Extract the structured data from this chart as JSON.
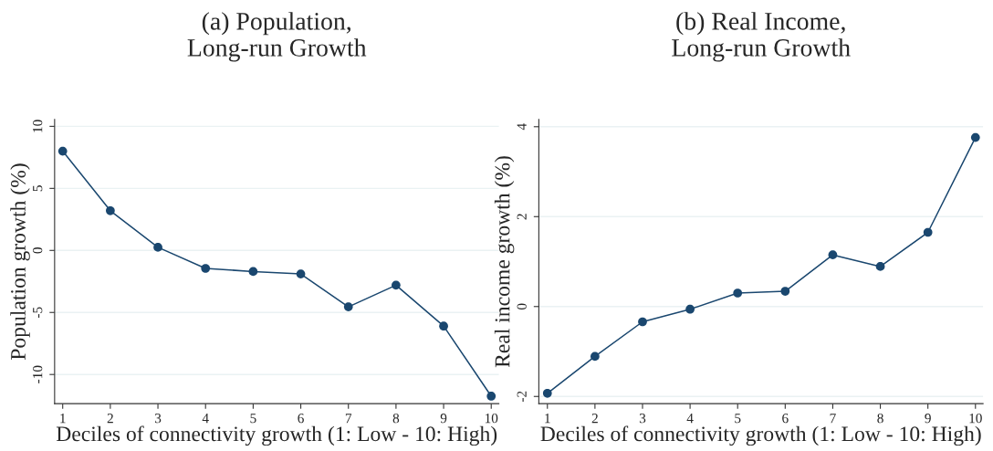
{
  "chart_data": [
    {
      "type": "line",
      "title": "(a) Population,\nLong-run Growth",
      "xlabel": "Deciles of connectivity growth (1: Low - 10: High)",
      "ylabel": "Population growth (%)",
      "x": [
        1,
        2,
        3,
        4,
        5,
        6,
        7,
        8,
        9,
        10
      ],
      "series": [
        {
          "color": "#1a476f",
          "values": [
            8.0,
            3.2,
            0.25,
            -1.45,
            -1.7,
            -1.9,
            -4.55,
            -2.8,
            -6.1,
            -11.75
          ]
        }
      ],
      "xlim": [
        0.83,
        10.16
      ],
      "xticks": [
        1,
        2,
        3,
        4,
        5,
        6,
        7,
        8,
        9,
        10
      ],
      "ylim": [
        -12.35,
        10.55
      ],
      "yticks": [
        -10,
        -5,
        0,
        5,
        10
      ],
      "grid": "y",
      "marker": "circle",
      "line_style": "solid",
      "legend": false
    },
    {
      "type": "line",
      "title": "(b) Real Income,\nLong-run Growth",
      "xlabel": "Deciles of connectivity growth (1: Low - 10: High)",
      "ylabel": "Real income growth (%)",
      "x": [
        1,
        2,
        3,
        4,
        5,
        6,
        7,
        8,
        9,
        10
      ],
      "series": [
        {
          "color": "#1a476f",
          "values": [
            -1.93,
            -1.11,
            -0.34,
            -0.06,
            0.3,
            0.34,
            1.15,
            0.89,
            1.65,
            3.76
          ]
        }
      ],
      "xlim": [
        0.82,
        10.16
      ],
      "xticks": [
        1,
        2,
        3,
        4,
        5,
        6,
        7,
        8,
        9,
        10
      ],
      "ylim": [
        -2.16,
        4.16
      ],
      "yticks": [
        -2,
        0,
        2,
        4
      ],
      "grid": "y",
      "marker": "circle",
      "line_style": "solid",
      "legend": false
    }
  ]
}
